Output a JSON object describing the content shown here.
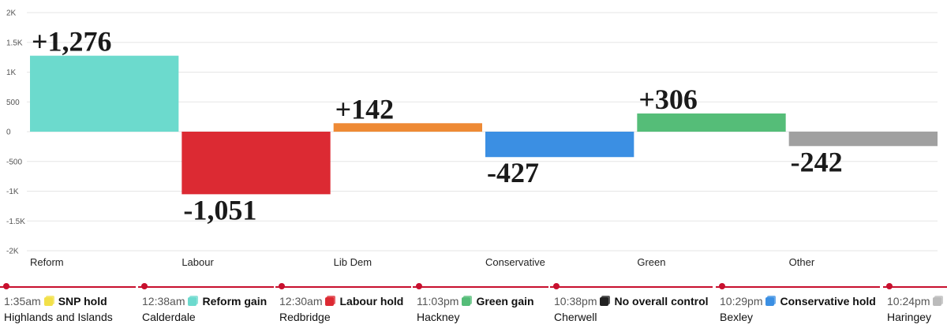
{
  "chart_data": {
    "type": "bar",
    "categories": [
      "Reform",
      "Labour",
      "Lib Dem",
      "Conservative",
      "Green",
      "Other"
    ],
    "values": [
      1276,
      -1051,
      142,
      -427,
      306,
      -242
    ],
    "data_labels": [
      "+1,276",
      "-1,051",
      "+142",
      "-427",
      "+306",
      "-242"
    ],
    "colors": [
      "#6cdacd",
      "#dc2a33",
      "#ee8a35",
      "#3b8fe3",
      "#55bd78",
      "#a0a0a0"
    ],
    "ylim": [
      -2000,
      2000
    ],
    "yticks": [
      2000,
      1500,
      1000,
      500,
      0,
      -500,
      -1000,
      -1500,
      -2000
    ],
    "ytick_labels": [
      "2K",
      "1.5K",
      "1K",
      "500",
      "0",
      "-500",
      "-1K",
      "-1.5K",
      "-2K"
    ],
    "grid": true,
    "xlabel": "",
    "ylabel": "",
    "title": ""
  },
  "ticker": [
    {
      "time": "1:35am",
      "status": "SNP hold",
      "place": "Highlands and Islands",
      "color": "#f2e04a"
    },
    {
      "time": "12:38am",
      "status": "Reform gain",
      "place": "Calderdale",
      "color": "#6cdacd"
    },
    {
      "time": "12:30am",
      "status": "Labour hold",
      "place": "Redbridge",
      "color": "#dc2a33"
    },
    {
      "time": "11:03pm",
      "status": "Green gain",
      "place": "Hackney",
      "color": "#55bd78"
    },
    {
      "time": "10:38pm",
      "status": "No overall control",
      "place": "Cherwell",
      "color": "#222222"
    },
    {
      "time": "10:29pm",
      "status": "Conservative hold",
      "place": "Bexley",
      "color": "#3b8fe3"
    },
    {
      "time": "10:24pm",
      "status": "",
      "place": "Haringey",
      "color": "#bbbbbb"
    }
  ]
}
